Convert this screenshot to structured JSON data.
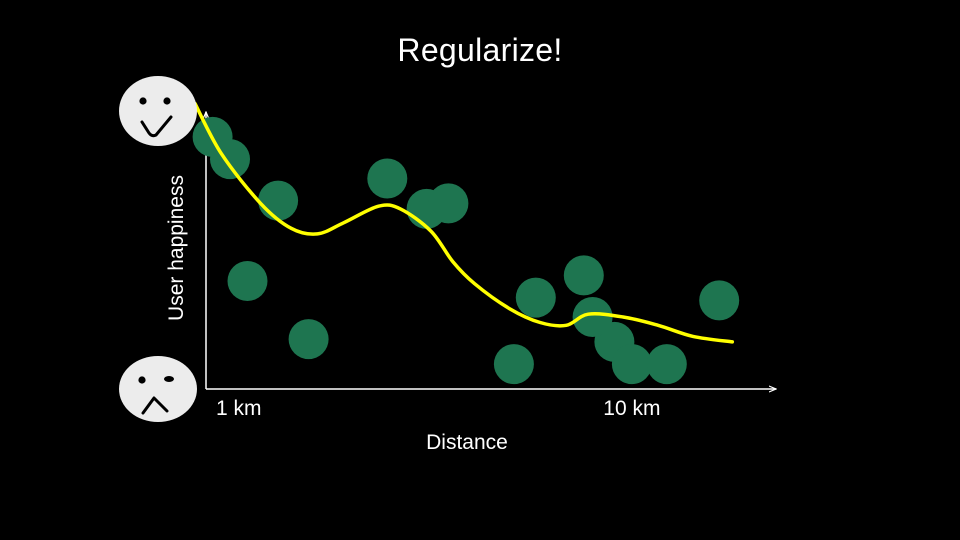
{
  "title": "Regularize!",
  "colors": {
    "background": "#000000",
    "point_fill": "#1e7550",
    "curve": "#ffff00",
    "axis": "#ffffff",
    "face": "#ececec",
    "face_features": "#000000"
  },
  "icons": {
    "top_face": "happy-face-icon",
    "bottom_face": "sad-face-icon"
  },
  "chart_data": {
    "type": "scatter",
    "title": "Regularize!",
    "xlabel": "Distance",
    "ylabel": "User happiness",
    "x_ticks": [
      {
        "value": 1,
        "label": "1 km"
      },
      {
        "value": 10,
        "label": "10 km"
      }
    ],
    "xlim": [
      0.25,
      13.3
    ],
    "ylim": [
      0,
      10
    ],
    "grid": false,
    "legend": "none",
    "series": [
      {
        "kind": "points",
        "x": [
          0.4,
          0.8,
          1.9,
          1.2,
          2.6,
          4.4,
          5.3,
          5.8,
          7.3,
          7.8,
          8.9,
          9.6,
          9.1,
          10.0,
          10.8,
          12.0
        ],
        "y": [
          9.1,
          8.3,
          6.8,
          3.9,
          1.8,
          7.6,
          6.5,
          6.7,
          0.9,
          3.3,
          4.1,
          1.7,
          2.6,
          0.9,
          0.9,
          3.2
        ]
      },
      {
        "kind": "fitted-curve",
        "x": [
          0.0,
          0.6,
          1.5,
          2.2,
          2.8,
          3.4,
          4.2,
          4.7,
          5.4,
          5.9,
          6.4,
          7.2,
          7.9,
          8.5,
          9.0,
          9.8,
          10.6,
          11.4,
          12.3
        ],
        "y": [
          10.3,
          8.5,
          6.7,
          5.8,
          5.6,
          6.0,
          6.6,
          6.5,
          5.7,
          4.6,
          3.8,
          2.9,
          2.4,
          2.3,
          2.7,
          2.6,
          2.3,
          1.9,
          1.7
        ]
      }
    ]
  }
}
